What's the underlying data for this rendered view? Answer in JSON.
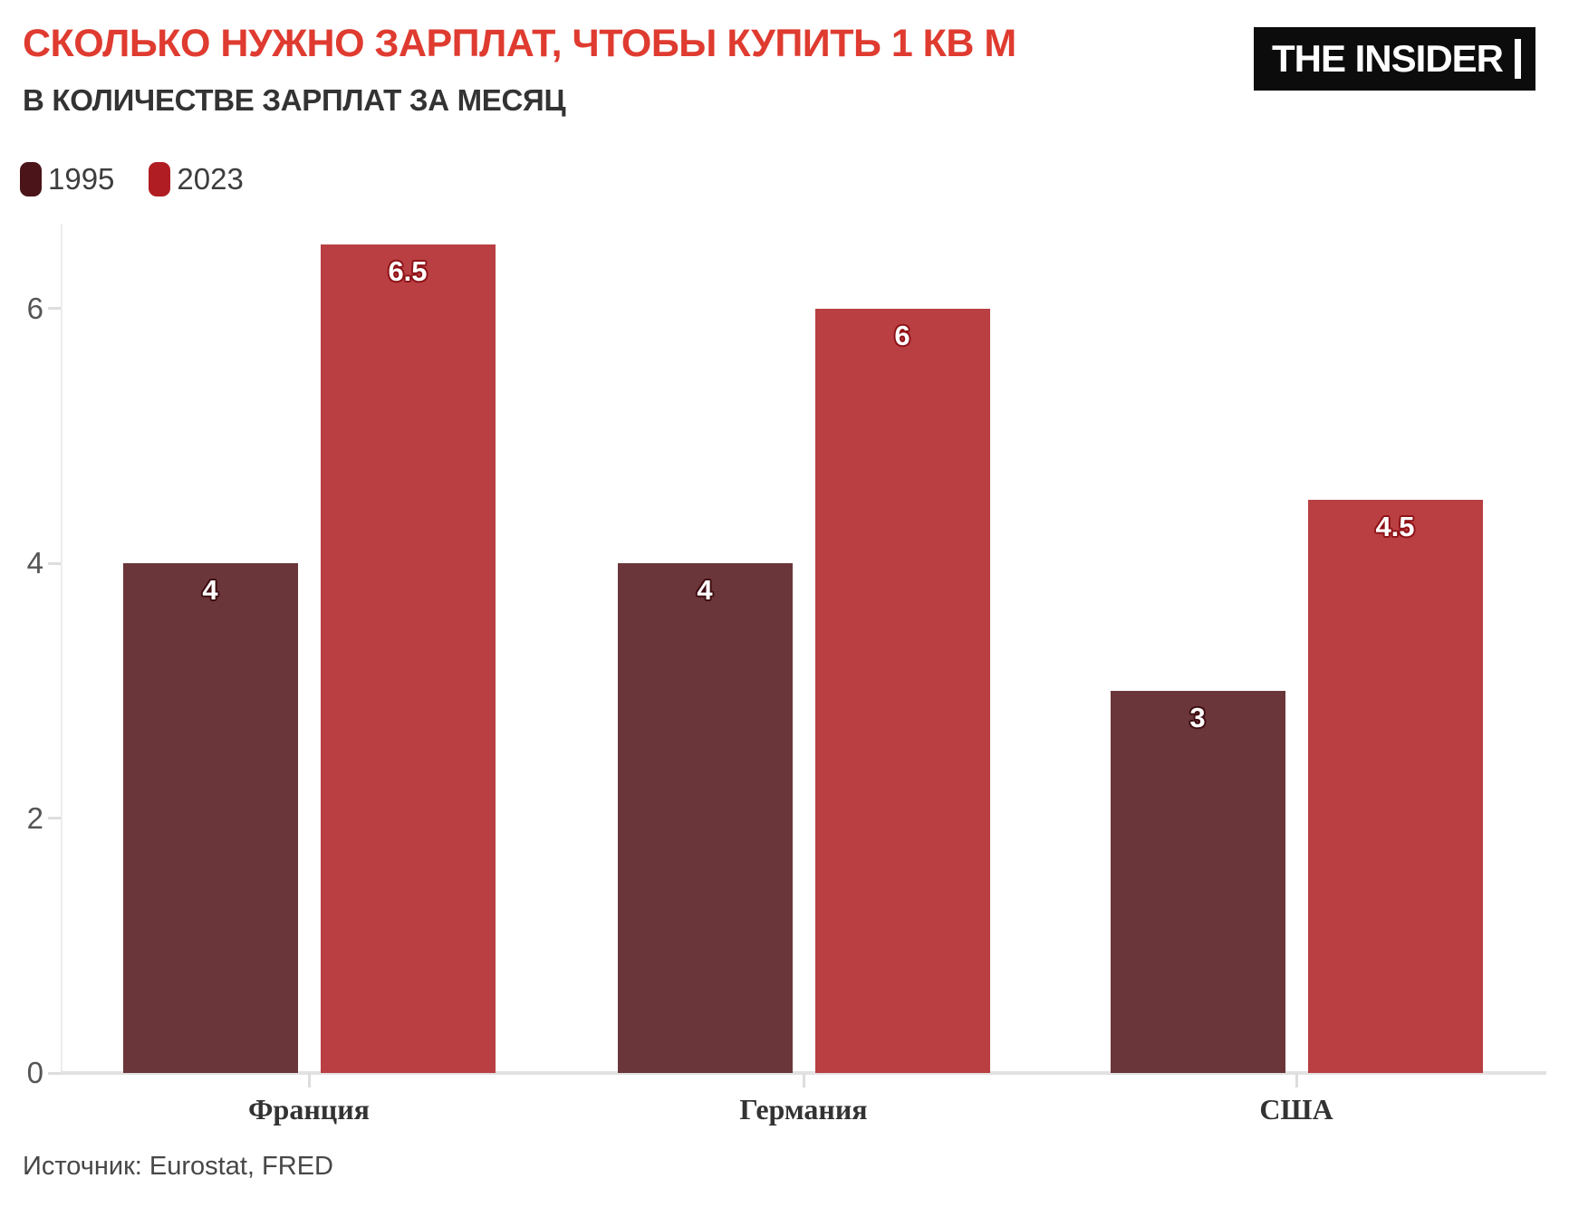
{
  "header": {
    "title": "СКОЛЬКО НУЖНО ЗАРПЛАТ, ЧТОБЫ КУПИТЬ 1 КВ М",
    "subtitle": "В КОЛИЧЕСТВЕ ЗАРПЛАТ ЗА МЕСЯЦ"
  },
  "logo": {
    "text": "THE INSIDER"
  },
  "colors": {
    "title_accent": "#df3b30",
    "series_1995_bar": "#6a363a",
    "series_2023_bar": "#b93f42",
    "legend_1995": "#4a1418",
    "legend_2023": "#b01d22",
    "axis_gray": "#e2e2e2"
  },
  "legend": {
    "items": [
      {
        "label": "1995",
        "color": "#4a1418"
      },
      {
        "label": "2023",
        "color": "#b01d22"
      }
    ]
  },
  "chart_data": {
    "type": "bar",
    "title": "СКОЛЬКО НУЖНО ЗАРПЛАТ, ЧТОБЫ КУПИТЬ 1 КВ М",
    "subtitle": "В КОЛИЧЕСТВЕ ЗАРПЛАТ ЗА МЕСЯЦ",
    "categories": [
      "Франция",
      "Германия",
      "США"
    ],
    "series": [
      {
        "name": "1995",
        "color": "#6a363a",
        "label_outline": "#3f0d11",
        "values": [
          4,
          4,
          3
        ]
      },
      {
        "name": "2023",
        "color": "#b93f42",
        "label_outline": "#8e1217",
        "values": [
          6.5,
          6,
          4.5
        ]
      }
    ],
    "yticks": [
      0,
      2,
      4,
      6
    ],
    "ylim": [
      0,
      6.65
    ],
    "xlabel": "",
    "ylabel": "",
    "grid": false,
    "legend_position": "top-left",
    "source": "Источник: Eurostat, FRED"
  },
  "footer": {
    "source": "Источник: Eurostat, FRED"
  }
}
